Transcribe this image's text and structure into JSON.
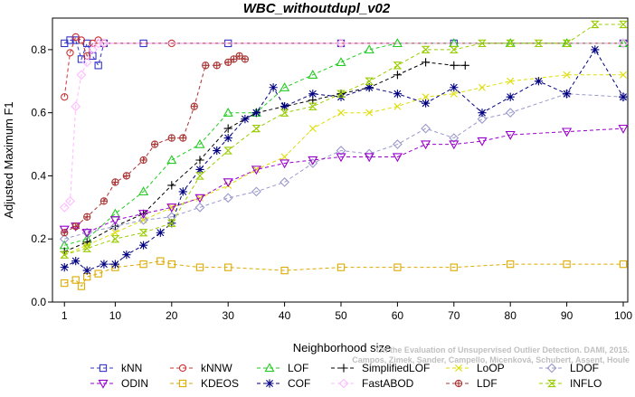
{
  "chart_data": {
    "type": "line",
    "title": "WBC_withoutdupl_v02",
    "xlabel": "Neighborhood size",
    "ylabel": "Adjusted Maximum F1",
    "xlim": [
      0,
      100
    ],
    "ylim": [
      0,
      0.9
    ],
    "xticks": [
      1,
      10,
      20,
      30,
      40,
      50,
      60,
      70,
      80,
      90,
      100
    ],
    "yticks": [
      0.0,
      0.2,
      0.4,
      0.6,
      0.8
    ],
    "ytick_labels": [
      "0.0",
      "0.2",
      "0.4",
      "0.6",
      "0.8"
    ],
    "grid": false,
    "legend_position": "bottom",
    "credit": [
      "On the Evaluation of Unsupervised Outlier Detection. DAMI, 2015.",
      "Campos, Zimek, Sander, Campello, Micenková, Schubert, Assent, Houle"
    ],
    "series": [
      {
        "name": "kNN",
        "color": "#3333cc",
        "marker": "square",
        "points": [
          [
            1,
            0.82
          ],
          [
            2,
            0.83
          ],
          [
            3,
            0.83
          ],
          [
            4,
            0.77
          ],
          [
            5,
            0.82
          ],
          [
            6,
            0.78
          ],
          [
            7,
            0.75
          ],
          [
            8,
            0.82
          ],
          [
            15,
            0.82
          ],
          [
            30,
            0.82
          ],
          [
            50,
            0.82
          ],
          [
            70,
            0.82
          ],
          [
            100,
            0.82
          ]
        ]
      },
      {
        "name": "kNNW",
        "color": "#cc3333",
        "marker": "circle",
        "points": [
          [
            1,
            0.65
          ],
          [
            2,
            0.79
          ],
          [
            3,
            0.84
          ],
          [
            4,
            0.83
          ],
          [
            5,
            0.78
          ],
          [
            6,
            0.82
          ],
          [
            7,
            0.83
          ],
          [
            8,
            0.82
          ],
          [
            20,
            0.82
          ],
          [
            50,
            0.82
          ],
          [
            100,
            0.82
          ]
        ]
      },
      {
        "name": "LOF",
        "color": "#22cc22",
        "marker": "triangle",
        "points": [
          [
            1,
            0.18
          ],
          [
            5,
            0.2
          ],
          [
            10,
            0.28
          ],
          [
            15,
            0.35
          ],
          [
            20,
            0.45
          ],
          [
            25,
            0.5
          ],
          [
            30,
            0.6
          ],
          [
            35,
            0.6
          ],
          [
            40,
            0.68
          ],
          [
            45,
            0.72
          ],
          [
            50,
            0.76
          ],
          [
            55,
            0.8
          ],
          [
            60,
            0.82
          ],
          [
            70,
            0.82
          ],
          [
            80,
            0.82
          ],
          [
            90,
            0.82
          ],
          [
            100,
            0.82
          ]
        ]
      },
      {
        "name": "SimplifiedLOF",
        "color": "#000000",
        "marker": "plus",
        "points": [
          [
            1,
            0.16
          ],
          [
            5,
            0.19
          ],
          [
            10,
            0.24
          ],
          [
            15,
            0.28
          ],
          [
            20,
            0.37
          ],
          [
            25,
            0.45
          ],
          [
            30,
            0.55
          ],
          [
            35,
            0.6
          ],
          [
            40,
            0.62
          ],
          [
            45,
            0.64
          ],
          [
            50,
            0.66
          ],
          [
            55,
            0.68
          ],
          [
            60,
            0.72
          ],
          [
            65,
            0.76
          ],
          [
            70,
            0.75
          ],
          [
            72,
            0.75
          ]
        ]
      },
      {
        "name": "LoOP",
        "color": "#dddd00",
        "marker": "x",
        "points": [
          [
            1,
            0.15
          ],
          [
            5,
            0.18
          ],
          [
            10,
            0.22
          ],
          [
            15,
            0.26
          ],
          [
            20,
            0.3
          ],
          [
            25,
            0.33
          ],
          [
            30,
            0.37
          ],
          [
            35,
            0.42
          ],
          [
            40,
            0.46
          ],
          [
            45,
            0.55
          ],
          [
            50,
            0.6
          ],
          [
            55,
            0.6
          ],
          [
            60,
            0.62
          ],
          [
            65,
            0.65
          ],
          [
            70,
            0.66
          ],
          [
            75,
            0.68
          ],
          [
            80,
            0.7
          ],
          [
            90,
            0.72
          ],
          [
            100,
            0.72
          ]
        ]
      },
      {
        "name": "LDOF",
        "color": "#9999cc",
        "marker": "diamond",
        "points": [
          [
            1,
            0.2
          ],
          [
            5,
            0.22
          ],
          [
            10,
            0.24
          ],
          [
            15,
            0.26
          ],
          [
            20,
            0.27
          ],
          [
            25,
            0.3
          ],
          [
            30,
            0.33
          ],
          [
            35,
            0.35
          ],
          [
            40,
            0.38
          ],
          [
            45,
            0.44
          ],
          [
            50,
            0.48
          ],
          [
            55,
            0.47
          ],
          [
            60,
            0.5
          ],
          [
            65,
            0.55
          ],
          [
            70,
            0.52
          ],
          [
            75,
            0.58
          ],
          [
            80,
            0.6
          ],
          [
            90,
            0.66
          ],
          [
            100,
            0.65
          ]
        ]
      },
      {
        "name": "ODIN",
        "color": "#9900cc",
        "marker": "triangle-down",
        "points": [
          [
            1,
            0.23
          ],
          [
            3,
            0.24
          ],
          [
            5,
            0.22
          ],
          [
            10,
            0.26
          ],
          [
            15,
            0.28
          ],
          [
            20,
            0.3
          ],
          [
            25,
            0.33
          ],
          [
            30,
            0.38
          ],
          [
            35,
            0.42
          ],
          [
            40,
            0.44
          ],
          [
            45,
            0.45
          ],
          [
            50,
            0.46
          ],
          [
            55,
            0.46
          ],
          [
            60,
            0.46
          ],
          [
            65,
            0.5
          ],
          [
            70,
            0.5
          ],
          [
            75,
            0.51
          ],
          [
            80,
            0.53
          ],
          [
            90,
            0.54
          ],
          [
            100,
            0.55
          ]
        ]
      },
      {
        "name": "KDEOS",
        "color": "#ddaa00",
        "marker": "square",
        "points": [
          [
            1,
            0.06
          ],
          [
            3,
            0.07
          ],
          [
            4,
            0.05
          ],
          [
            5,
            0.08
          ],
          [
            7,
            0.09
          ],
          [
            10,
            0.11
          ],
          [
            15,
            0.12
          ],
          [
            18,
            0.13
          ],
          [
            20,
            0.12
          ],
          [
            25,
            0.11
          ],
          [
            30,
            0.11
          ],
          [
            40,
            0.1
          ],
          [
            50,
            0.11
          ],
          [
            60,
            0.11
          ],
          [
            70,
            0.11
          ],
          [
            80,
            0.12
          ],
          [
            90,
            0.12
          ],
          [
            100,
            0.12
          ]
        ]
      },
      {
        "name": "COF",
        "color": "#000080",
        "marker": "asterisk",
        "points": [
          [
            1,
            0.11
          ],
          [
            3,
            0.13
          ],
          [
            5,
            0.1
          ],
          [
            8,
            0.12
          ],
          [
            10,
            0.12
          ],
          [
            12,
            0.15
          ],
          [
            15,
            0.18
          ],
          [
            18,
            0.22
          ],
          [
            20,
            0.25
          ],
          [
            22,
            0.35
          ],
          [
            25,
            0.42
          ],
          [
            28,
            0.48
          ],
          [
            30,
            0.52
          ],
          [
            33,
            0.58
          ],
          [
            35,
            0.6
          ],
          [
            38,
            0.68
          ],
          [
            40,
            0.62
          ],
          [
            45,
            0.66
          ],
          [
            50,
            0.65
          ],
          [
            55,
            0.68
          ],
          [
            60,
            0.66
          ],
          [
            65,
            0.63
          ],
          [
            70,
            0.68
          ],
          [
            75,
            0.6
          ],
          [
            80,
            0.65
          ],
          [
            85,
            0.7
          ],
          [
            90,
            0.66
          ],
          [
            95,
            0.8
          ],
          [
            100,
            0.65
          ]
        ]
      },
      {
        "name": "FastABOD",
        "color": "#ffbbff",
        "marker": "diamond",
        "points": [
          [
            1,
            0.3
          ],
          [
            2,
            0.32
          ],
          [
            3,
            0.62
          ],
          [
            4,
            0.72
          ],
          [
            5,
            0.76
          ],
          [
            6,
            0.8
          ],
          [
            7,
            0.82
          ],
          [
            8,
            0.82
          ],
          [
            50,
            0.82
          ],
          [
            100,
            0.82
          ]
        ]
      },
      {
        "name": "LDF",
        "color": "#aa3333",
        "marker": "circle-plus",
        "points": [
          [
            1,
            0.22
          ],
          [
            3,
            0.24
          ],
          [
            5,
            0.27
          ],
          [
            8,
            0.32
          ],
          [
            10,
            0.38
          ],
          [
            12,
            0.4
          ],
          [
            15,
            0.45
          ],
          [
            17,
            0.5
          ],
          [
            20,
            0.52
          ],
          [
            22,
            0.52
          ],
          [
            24,
            0.62
          ],
          [
            26,
            0.75
          ],
          [
            28,
            0.75
          ],
          [
            30,
            0.76
          ],
          [
            31,
            0.77
          ],
          [
            32,
            0.78
          ],
          [
            33,
            0.77
          ]
        ]
      },
      {
        "name": "INFLO",
        "color": "#99cc00",
        "marker": "hourglass",
        "points": [
          [
            1,
            0.15
          ],
          [
            5,
            0.17
          ],
          [
            10,
            0.2
          ],
          [
            15,
            0.22
          ],
          [
            20,
            0.25
          ],
          [
            25,
            0.4
          ],
          [
            30,
            0.48
          ],
          [
            35,
            0.55
          ],
          [
            40,
            0.6
          ],
          [
            45,
            0.62
          ],
          [
            50,
            0.66
          ],
          [
            55,
            0.7
          ],
          [
            60,
            0.75
          ],
          [
            65,
            0.8
          ],
          [
            70,
            0.8
          ],
          [
            75,
            0.82
          ],
          [
            80,
            0.82
          ],
          [
            85,
            0.82
          ],
          [
            90,
            0.82
          ],
          [
            95,
            0.88
          ],
          [
            100,
            0.88
          ]
        ]
      }
    ]
  }
}
